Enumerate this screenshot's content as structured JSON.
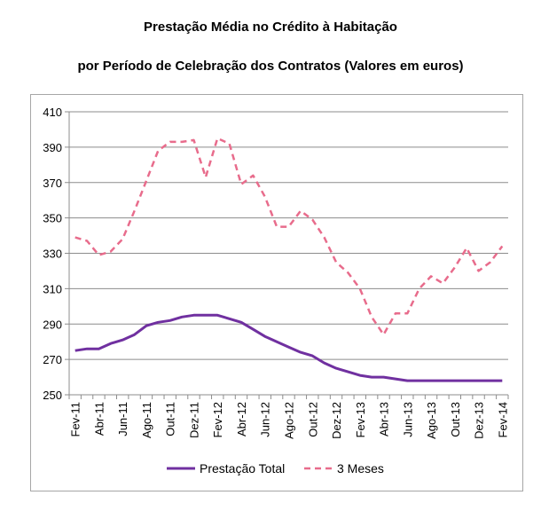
{
  "chart_data": {
    "type": "line",
    "title": "Prestação Média no Crédito à Habitação",
    "subtitle": "por Período de Celebração dos Contratos (Valores em euros)",
    "xlabel": "",
    "ylabel": "",
    "ylim": [
      250,
      410
    ],
    "yticks": [
      250,
      270,
      290,
      310,
      330,
      350,
      370,
      390,
      410
    ],
    "grid": true,
    "legend": "bottom",
    "categories": [
      "Fev-11",
      "Mar-11",
      "Abr-11",
      "Mai-11",
      "Jun-11",
      "Jul-11",
      "Ago-11",
      "Set-11",
      "Out-11",
      "Nov-11",
      "Dez-11",
      "Jan-12",
      "Fev-12",
      "Mar-12",
      "Abr-12",
      "Mai-12",
      "Jun-12",
      "Jul-12",
      "Ago-12",
      "Set-12",
      "Out-12",
      "Nov-12",
      "Dez-12",
      "Jan-13",
      "Fev-13",
      "Mar-13",
      "Abr-13",
      "Mai-13",
      "Jun-13",
      "Jul-13",
      "Ago-13",
      "Set-13",
      "Out-13",
      "Nov-13",
      "Dez-13",
      "Jan-14",
      "Fev-14"
    ],
    "tick_labels": [
      "Fev-11",
      "Abr-11",
      "Jun-11",
      "Ago-11",
      "Out-11",
      "Dez-11",
      "Fev-12",
      "Abr-12",
      "Jun-12",
      "Ago-12",
      "Out-12",
      "Dez-12",
      "Fev-13",
      "Abr-13",
      "Jun-13",
      "Ago-13",
      "Out-13",
      "Dez-13",
      "Fev-14"
    ],
    "series": [
      {
        "name": "Prestação Total",
        "color": "#7030a0",
        "style": "solid",
        "values": [
          275,
          276,
          276,
          279,
          281,
          284,
          289,
          291,
          292,
          294,
          295,
          295,
          295,
          293,
          291,
          287,
          283,
          280,
          277,
          274,
          272,
          268,
          265,
          263,
          261,
          260,
          260,
          259,
          258,
          258,
          258,
          258,
          258,
          258,
          258,
          258,
          258
        ]
      },
      {
        "name": "3 Meses",
        "color": "#e86c8c",
        "style": "dashed",
        "values": [
          339,
          337,
          329,
          331,
          338,
          354,
          371,
          388,
          393,
          393,
          394,
          373,
          395,
          392,
          369,
          374,
          362,
          345,
          345,
          354,
          349,
          339,
          325,
          319,
          310,
          294,
          284,
          296,
          296,
          310,
          317,
          313,
          322,
          333,
          320,
          325,
          334
        ]
      }
    ]
  }
}
